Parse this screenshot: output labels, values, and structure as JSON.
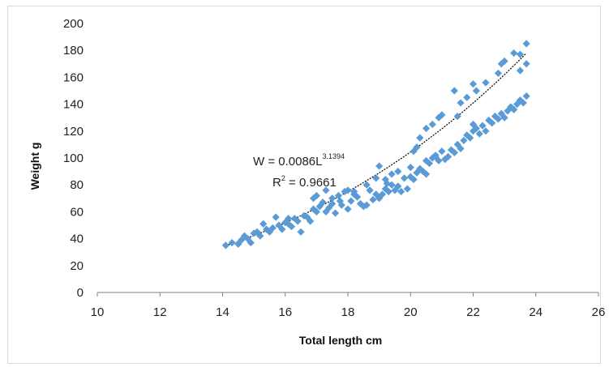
{
  "chart_data": {
    "type": "scatter",
    "xlabel": "Total length cm",
    "ylabel": "Weight g",
    "xlim": [
      10,
      26
    ],
    "ylim": [
      0,
      200
    ],
    "x_ticks": [
      "10",
      "12",
      "14",
      "16",
      "18",
      "20",
      "22",
      "24",
      "26"
    ],
    "y_ticks": [
      "0",
      "20",
      "40",
      "60",
      "80",
      "100",
      "120",
      "140",
      "160",
      "180",
      "200"
    ],
    "grid": false,
    "marker_color": "#5b9bd5",
    "trendline": {
      "type": "power",
      "a": 0.0086,
      "b": 3.1394,
      "x_range": [
        14.1,
        23.7
      ],
      "color": "#000000",
      "style": "dotted",
      "equation_main": "W = 0.0086L",
      "equation_exponent": "3.1394",
      "r2_label": "R",
      "r2_exponent": "2",
      "r2_value": " = 0.9661"
    },
    "points": [
      [
        14.1,
        35
      ],
      [
        14.3,
        37
      ],
      [
        14.5,
        36
      ],
      [
        14.6,
        39
      ],
      [
        14.7,
        42
      ],
      [
        14.8,
        40
      ],
      [
        14.9,
        37
      ],
      [
        15.0,
        44
      ],
      [
        15.1,
        45
      ],
      [
        15.2,
        42
      ],
      [
        15.3,
        51
      ],
      [
        15.4,
        47
      ],
      [
        15.5,
        45
      ],
      [
        15.6,
        48
      ],
      [
        15.7,
        56
      ],
      [
        15.8,
        50
      ],
      [
        15.9,
        47
      ],
      [
        16.0,
        52
      ],
      [
        16.1,
        51
      ],
      [
        16.2,
        49
      ],
      [
        16.3,
        55
      ],
      [
        16.4,
        53
      ],
      [
        16.5,
        45
      ],
      [
        16.6,
        57
      ],
      [
        16.7,
        56
      ],
      [
        16.8,
        53
      ],
      [
        16.9,
        62
      ],
      [
        17.0,
        60
      ],
      [
        17.1,
        64
      ],
      [
        17.2,
        67
      ],
      [
        17.3,
        60
      ],
      [
        17.4,
        63
      ],
      [
        17.5,
        70
      ],
      [
        17.6,
        59
      ],
      [
        17.7,
        72
      ],
      [
        17.75,
        68
      ],
      [
        17.8,
        65
      ],
      [
        17.9,
        75
      ],
      [
        18.0,
        62
      ],
      [
        18.1,
        68
      ],
      [
        18.2,
        73
      ],
      [
        18.3,
        71
      ],
      [
        18.4,
        66
      ],
      [
        18.5,
        64
      ],
      [
        18.6,
        65
      ],
      [
        18.7,
        76
      ],
      [
        18.8,
        69
      ],
      [
        18.9,
        73
      ],
      [
        19.0,
        70
      ],
      [
        19.1,
        73
      ],
      [
        19.2,
        77
      ],
      [
        19.25,
        81
      ],
      [
        19.3,
        75
      ],
      [
        19.4,
        80
      ],
      [
        19.5,
        76
      ],
      [
        19.6,
        79
      ],
      [
        19.7,
        75
      ],
      [
        19.8,
        85
      ],
      [
        19.9,
        77
      ],
      [
        20.0,
        86
      ],
      [
        20.0,
        93
      ],
      [
        20.1,
        84
      ],
      [
        20.2,
        89
      ],
      [
        20.3,
        92
      ],
      [
        20.4,
        90
      ],
      [
        20.5,
        88
      ],
      [
        20.5,
        98
      ],
      [
        20.6,
        96
      ],
      [
        20.7,
        100
      ],
      [
        20.8,
        102
      ],
      [
        20.9,
        98
      ],
      [
        21.0,
        105
      ],
      [
        21.1,
        99
      ],
      [
        21.2,
        101
      ],
      [
        21.3,
        106
      ],
      [
        21.4,
        104
      ],
      [
        21.5,
        110
      ],
      [
        21.6,
        107
      ],
      [
        21.7,
        113
      ],
      [
        21.8,
        117
      ],
      [
        21.9,
        115
      ],
      [
        22.0,
        120
      ],
      [
        22.0,
        125
      ],
      [
        22.1,
        122
      ],
      [
        22.2,
        118
      ],
      [
        22.3,
        124
      ],
      [
        22.4,
        120
      ],
      [
        22.5,
        128
      ],
      [
        22.6,
        126
      ],
      [
        22.7,
        131
      ],
      [
        22.8,
        129
      ],
      [
        22.9,
        133
      ],
      [
        23.0,
        130
      ],
      [
        23.1,
        135
      ],
      [
        23.2,
        138
      ],
      [
        23.3,
        136
      ],
      [
        23.4,
        140
      ],
      [
        23.5,
        143
      ],
      [
        23.6,
        141
      ],
      [
        23.7,
        146
      ],
      [
        18.6,
        80
      ],
      [
        18.9,
        85
      ],
      [
        19.0,
        94
      ],
      [
        19.2,
        84
      ],
      [
        19.4,
        88
      ],
      [
        19.6,
        90
      ],
      [
        20.1,
        105
      ],
      [
        20.3,
        115
      ],
      [
        20.5,
        122
      ],
      [
        20.7,
        125
      ],
      [
        20.9,
        130
      ],
      [
        21.0,
        132
      ],
      [
        21.4,
        150
      ],
      [
        21.6,
        141
      ],
      [
        21.8,
        145
      ],
      [
        22.0,
        155
      ],
      [
        22.1,
        150
      ],
      [
        22.4,
        156
      ],
      [
        22.8,
        163
      ],
      [
        22.9,
        170
      ],
      [
        23.0,
        172
      ],
      [
        23.3,
        178
      ],
      [
        23.5,
        177
      ],
      [
        23.7,
        185
      ],
      [
        23.7,
        170
      ],
      [
        23.5,
        165
      ],
      [
        20.2,
        108
      ],
      [
        20.8,
        101
      ],
      [
        21.5,
        131
      ],
      [
        17.0,
        72
      ],
      [
        17.3,
        76
      ],
      [
        16.9,
        70
      ],
      [
        18.0,
        76
      ],
      [
        18.2,
        75
      ],
      [
        17.5,
        66
      ],
      [
        16.1,
        55
      ]
    ]
  }
}
